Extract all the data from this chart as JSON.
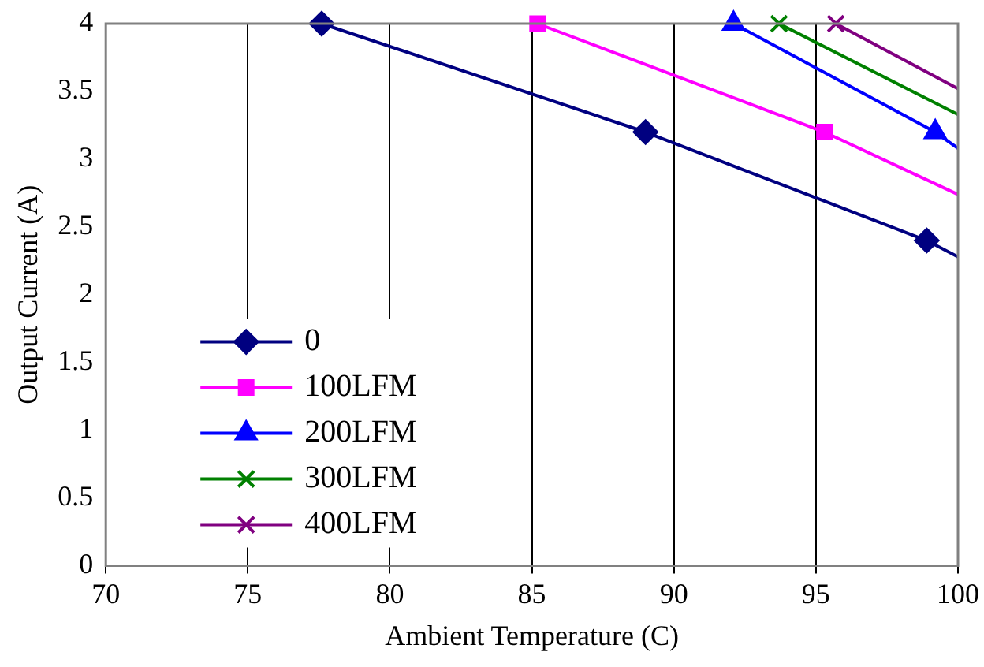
{
  "chart_data": {
    "type": "line",
    "xlabel": "Ambient Temperature (C)",
    "ylabel": "Output Current (A)",
    "xlim": [
      70,
      100
    ],
    "xticks": [
      70,
      75,
      80,
      85,
      90,
      95,
      100
    ],
    "ylim": [
      0,
      4
    ],
    "yticks": [
      0,
      0.5,
      1,
      1.5,
      2,
      2.5,
      3,
      3.5,
      4
    ],
    "grid": "x",
    "legend": "bottom left",
    "series": [
      {
        "name": "0",
        "color": "#000080",
        "marker": "diamond",
        "x": [
          77.6,
          89.0,
          98.9,
          100
        ],
        "values": [
          4,
          3.2,
          2.4,
          2.28
        ]
      },
      {
        "name": "100LFM",
        "color": "#ff00ff",
        "marker": "square",
        "x": [
          85.2,
          95.3,
          100
        ],
        "values": [
          4,
          3.2,
          2.74
        ]
      },
      {
        "name": "200LFM",
        "color": "#0000ff",
        "marker": "triangle",
        "x": [
          92.1,
          99.2,
          100
        ],
        "values": [
          4,
          3.2,
          3.08
        ]
      },
      {
        "name": "300LFM",
        "color": "#008000",
        "marker": "cross",
        "x": [
          93.7,
          100
        ],
        "values": [
          4,
          3.33
        ]
      },
      {
        "name": "400LFM",
        "color": "#800080",
        "marker": "cross",
        "x": [
          95.7,
          100
        ],
        "values": [
          4,
          3.52
        ]
      }
    ]
  }
}
